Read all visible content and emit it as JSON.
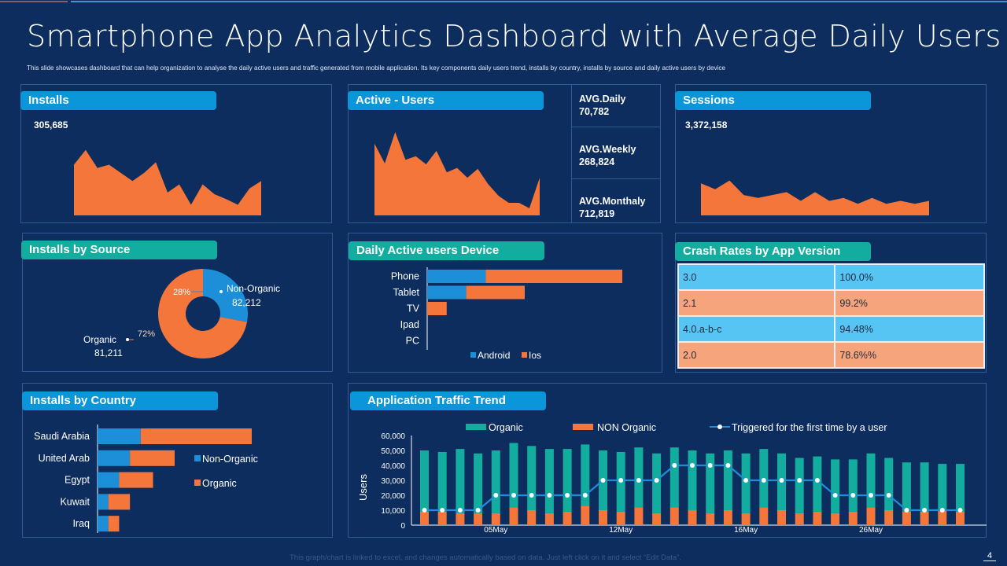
{
  "title": "Smartphone App Analytics Dashboard with Average Daily Users",
  "subtitle": "This slide showcases dashboard that can help organization  to analyse the daily active users and traffic generated from mobile application. Its key components daily users trend, installs by country, installs by source and daily active users by device",
  "colors": {
    "background": "#0c2d5e",
    "orange": "#f4763a",
    "blue": "#1c8fd8",
    "teal": "#13ada0",
    "header_blue": "#0a96d8",
    "header_teal": "#13ada0"
  },
  "installs": {
    "label": "Installs",
    "total": "305,685",
    "trend": [
      62,
      80,
      58,
      62,
      52,
      42,
      52,
      65,
      28,
      38,
      13,
      38,
      26,
      20,
      13,
      33,
      42
    ]
  },
  "active_users": {
    "label": "Active - Users",
    "trend": [
      80,
      58,
      93,
      62,
      66,
      57,
      72,
      48,
      53,
      42,
      52,
      35,
      22,
      14,
      14,
      8,
      42
    ],
    "avg_daily_label": "AVG.Daily",
    "avg_daily": "70,782",
    "avg_weekly_label": "AVG.Weekly",
    "avg_weekly": "268,824",
    "avg_monthly_label": "AVG.Monthaly",
    "avg_monthly": "712,819"
  },
  "sessions": {
    "label": "Sessions",
    "total": "3,372,158",
    "trend": [
      55,
      45,
      60,
      35,
      30,
      35,
      40,
      25,
      40,
      25,
      30,
      20,
      30,
      20,
      25,
      20,
      25
    ]
  },
  "installs_by_source": {
    "label": "Installs by Source",
    "slices": [
      {
        "name": "Non-Organic",
        "value": "82,212",
        "percent": 28,
        "pct_label": "28%"
      },
      {
        "name": "Organic",
        "value": "81,211",
        "percent": 72,
        "pct_label": "72%"
      }
    ]
  },
  "device": {
    "label": "Daily Active users Device",
    "categories": [
      "Phone",
      "Tablet",
      "TV",
      "Ipad",
      "PC"
    ],
    "android": [
      30,
      20,
      0,
      0,
      0
    ],
    "ios": [
      70,
      30,
      10,
      0,
      0
    ],
    "legend": [
      "Android",
      "Ios"
    ]
  },
  "crash_rates": {
    "label": "Crash Rates by App Version",
    "rows": [
      {
        "version": "3.0",
        "rate": "100.0%"
      },
      {
        "version": "2.1",
        "rate": "99.2%"
      },
      {
        "version": "4.0.a-b-c",
        "rate": "94.48%"
      },
      {
        "version": "2.0",
        "rate": "78.6%%"
      }
    ]
  },
  "installs_by_country": {
    "label": "Installs by Country",
    "categories": [
      "Saudi Arabia",
      "United Arab",
      "Egypt",
      "Kuwait",
      "Iraq"
    ],
    "non_organic": [
      28,
      21,
      14,
      7,
      7
    ],
    "organic": [
      72,
      29,
      22,
      14,
      7
    ],
    "legend": [
      "Non-Organic",
      "Organic"
    ]
  },
  "traffic": {
    "label": "Application Traffic Trend",
    "ylabel": "Users",
    "yticks": [
      "60,000",
      "50,000",
      "40,000",
      "30,000",
      "20,000",
      "10,000",
      "0"
    ],
    "ymax": 60000,
    "legend": [
      "Organic",
      "NON Organic",
      "Triggered for the first time by a user"
    ],
    "xlabels": [
      {
        "index": 4,
        "label": "05May"
      },
      {
        "index": 11,
        "label": "12May"
      },
      {
        "index": 18,
        "label": "16May"
      },
      {
        "index": 25,
        "label": "26May"
      }
    ]
  },
  "chart_data": {
    "type": "bar",
    "title": "Application Traffic Trend",
    "ylabel": "Users",
    "ylim": [
      0,
      60000
    ],
    "x_tick_labels": [
      "05May",
      "12May",
      "16May",
      "26May"
    ],
    "series": [
      {
        "name": "Organic",
        "values": [
          41000,
          40000,
          43000,
          40000,
          42000,
          43000,
          43000,
          43000,
          42000,
          41000,
          40000,
          40000,
          40000,
          40000,
          40000,
          40000,
          40000,
          40000,
          40000,
          39000,
          38000,
          37000,
          37000,
          36000,
          35000,
          36000,
          35000,
          33000,
          33000,
          31000,
          32000
        ]
      },
      {
        "name": "NON Organic",
        "values": [
          9000,
          9000,
          8000,
          8000,
          8000,
          12000,
          10000,
          8000,
          9000,
          13000,
          10000,
          9000,
          12000,
          8000,
          12000,
          10000,
          8000,
          10000,
          8000,
          12000,
          10000,
          8000,
          9000,
          8000,
          9000,
          12000,
          10000,
          9000,
          9000,
          10000,
          9000
        ]
      },
      {
        "name": "Triggered for the first time by a user",
        "values": [
          10000,
          10000,
          10000,
          10000,
          20000,
          20000,
          20000,
          20000,
          20000,
          20000,
          30000,
          30000,
          30000,
          30000,
          40000,
          40000,
          40000,
          40000,
          30000,
          30000,
          30000,
          30000,
          30000,
          20000,
          20000,
          20000,
          20000,
          10000,
          10000,
          10000,
          10000
        ]
      }
    ]
  },
  "footer": {
    "note": "This graph/chart is linked to excel, and changes automatically based on data. Just left click on it and select “Edit Data”.",
    "page": "4"
  }
}
